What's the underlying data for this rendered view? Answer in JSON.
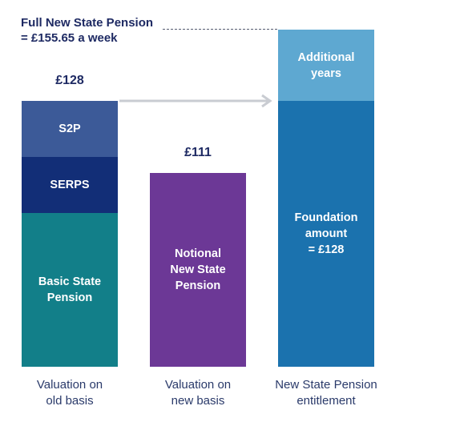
{
  "header": {
    "line1": "Full New State Pension",
    "line2": "= £155.65 a week"
  },
  "columns": [
    {
      "value_label": "£128",
      "segments": [
        {
          "lines": [
            "S2P"
          ],
          "color": "#3c5a98"
        },
        {
          "lines": [
            "SERPS"
          ],
          "color": "#122e77"
        },
        {
          "lines": [
            "Basic State",
            "Pension"
          ],
          "color": "#127f89"
        }
      ],
      "caption": [
        "Valuation on",
        "old basis"
      ]
    },
    {
      "value_label": "£111",
      "segments": [
        {
          "lines": [
            "Notional",
            "New State",
            "Pension"
          ],
          "color": "#6c3896"
        }
      ],
      "caption": [
        "Valuation on",
        "new basis"
      ]
    },
    {
      "value_label": "",
      "segments": [
        {
          "lines": [
            "Additional",
            "years"
          ],
          "color": "#5ea8d1"
        },
        {
          "lines": [
            "Foundation",
            "amount",
            "= £128"
          ],
          "color": "#1b72ae"
        }
      ],
      "caption": [
        "New State Pension",
        "entitlement"
      ]
    }
  ],
  "colors": {
    "title": "#1e2a63",
    "arrow": "#c9ccd2",
    "dotted_line": "#555c70"
  }
}
